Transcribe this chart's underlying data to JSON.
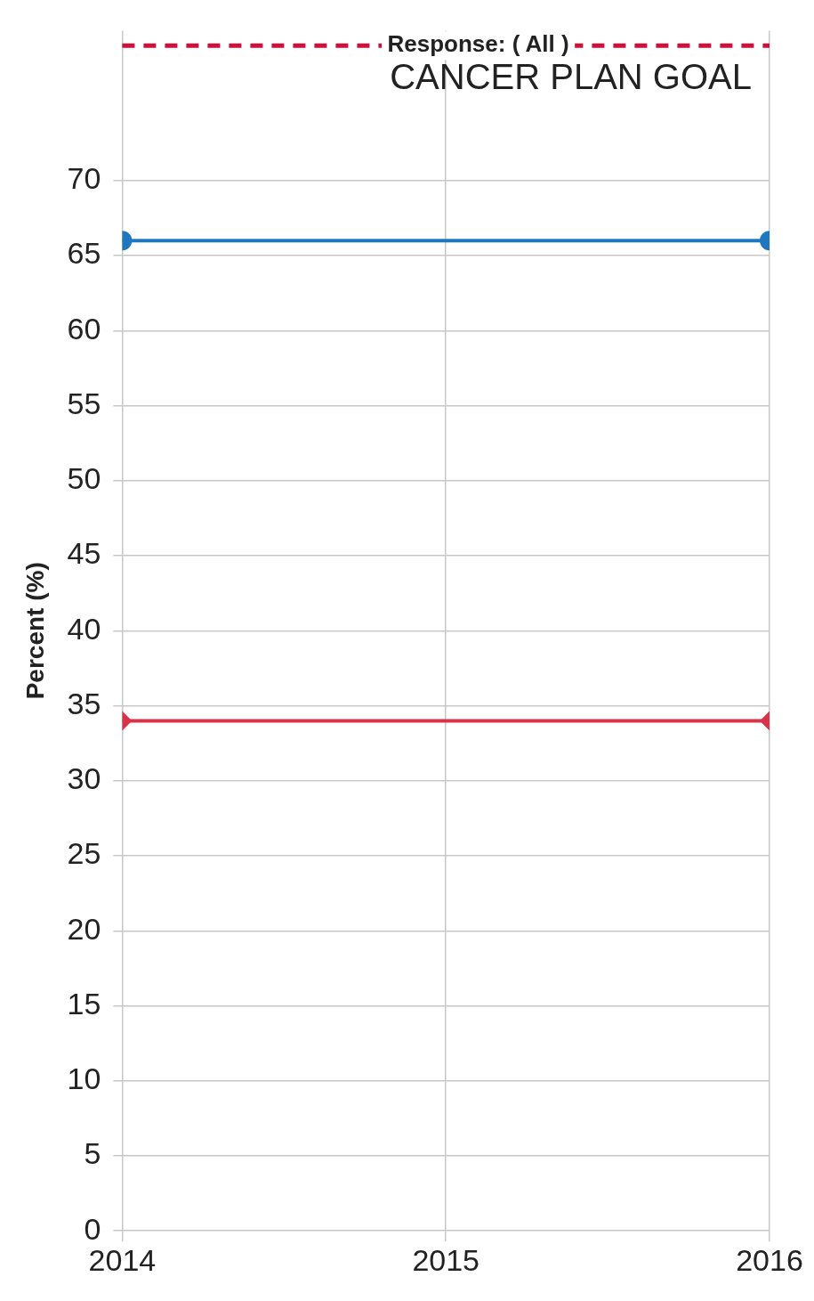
{
  "chart_data": {
    "type": "line",
    "title": "Response: ( All )",
    "ylabel": "Percent (%)",
    "x": [
      2014,
      2016
    ],
    "xlim": [
      2014,
      2016
    ],
    "xticks": [
      2014,
      2015,
      2016
    ],
    "ylim": [
      0,
      80
    ],
    "yticks": [
      0,
      5,
      10,
      15,
      20,
      25,
      30,
      35,
      40,
      45,
      50,
      55,
      60,
      65,
      70
    ],
    "series": [
      {
        "color": "#1f77c0",
        "values": [
          66,
          66
        ],
        "marker": "circle"
      },
      {
        "color": "#d9334a",
        "values": [
          34,
          34
        ],
        "marker": "diamond"
      }
    ],
    "ref_lines": [
      {
        "axis": "y",
        "value": 79,
        "label": "CANCER PLAN GOAL",
        "color": "#d0103a",
        "line_style": "dashed"
      }
    ],
    "grid": true,
    "legend": false,
    "line_style": "solid"
  }
}
